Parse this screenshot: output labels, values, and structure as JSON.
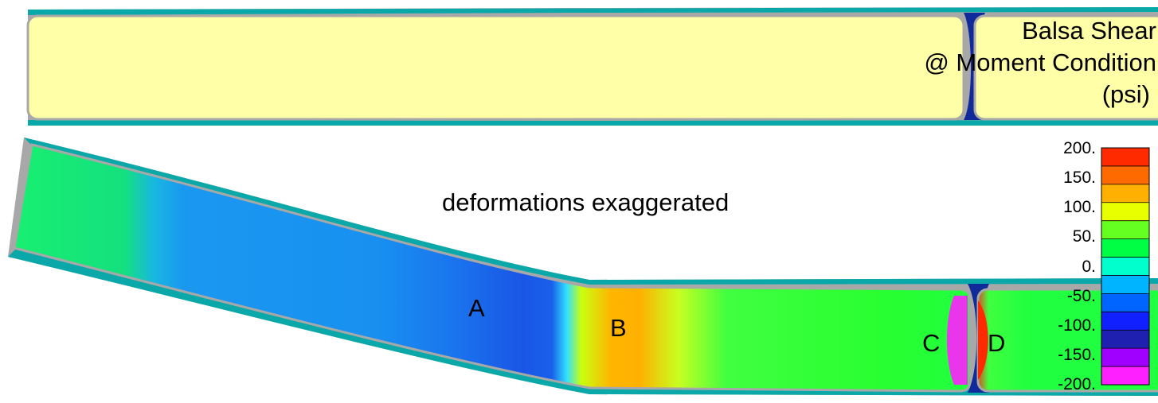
{
  "title": [
    "Balsa Shear",
    "@ Moment Condition",
    "(psi)"
  ],
  "note": "deformations exaggerated",
  "region_labels": [
    "A",
    "B",
    "C",
    "D"
  ],
  "legend": {
    "ticks": [
      "200.",
      "150.",
      "100.",
      "50.",
      "0.",
      "-50.",
      "-100.",
      "-150.",
      "-200."
    ],
    "bands_top_to_bottom": [
      "#ff2a00",
      "#ff6a00",
      "#ffb000",
      "#e8ff00",
      "#66ff22",
      "#00ff44",
      "#00ffcc",
      "#00b4ff",
      "#0064ff",
      "#1020ff",
      "#2020b0",
      "#a000ff",
      "#ff20ff"
    ]
  },
  "colors": {
    "skin": "#0aa8a8",
    "shell": "#a8a8a8",
    "core_undeformed": "#ffffa8",
    "adhesive_joint": "#102a9a"
  }
}
